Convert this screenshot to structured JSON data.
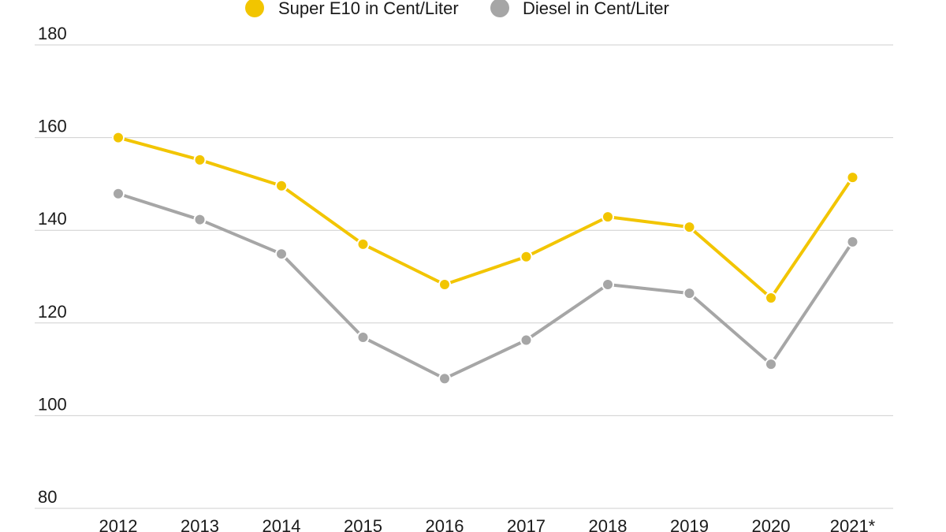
{
  "chart_data": {
    "type": "line",
    "categories": [
      "2012",
      "2013",
      "2014",
      "2015",
      "2016",
      "2017",
      "2018",
      "2019",
      "2020",
      "2021*"
    ],
    "series": [
      {
        "name": "Super E10 in Cent/Liter",
        "color": "#f2c500",
        "values": [
          160.0,
          155.2,
          149.6,
          137.0,
          128.3,
          134.3,
          142.9,
          140.7,
          125.4,
          151.4
        ]
      },
      {
        "name": "Diesel in Cent/Liter",
        "color": "#a6a6a6",
        "values": [
          147.9,
          142.3,
          134.9,
          116.9,
          108.0,
          116.3,
          128.3,
          126.4,
          111.1,
          137.5
        ]
      }
    ],
    "yticks": [
      "80",
      "100",
      "120",
      "140",
      "160",
      "180"
    ],
    "ylim": [
      80,
      180
    ],
    "grid": true,
    "legend": "top-center",
    "title": "",
    "xlabel": "",
    "ylabel": ""
  }
}
